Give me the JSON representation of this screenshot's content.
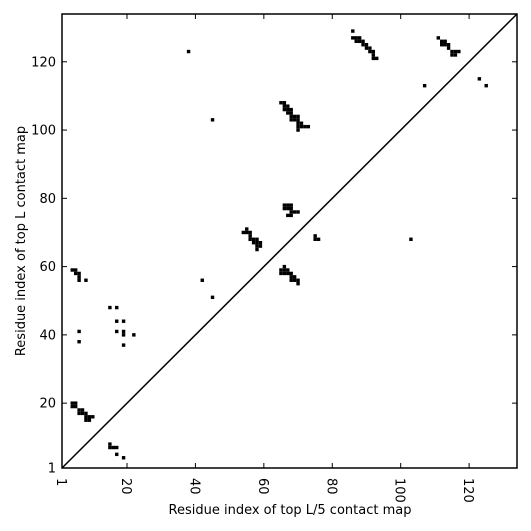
{
  "chart_data": {
    "type": "scatter",
    "title": "",
    "xlabel": "Residue index of top L/5 contact map",
    "ylabel": "Residue index of top L contact map",
    "xlim": [
      1,
      134
    ],
    "ylim": [
      1,
      134
    ],
    "xticks": [
      1,
      20,
      40,
      60,
      80,
      100,
      120
    ],
    "yticks": [
      1,
      20,
      40,
      60,
      80,
      100,
      120
    ],
    "xtick_rotation_deg": -90,
    "marker": "square",
    "marker_color": "#000000",
    "diagonal_line": true,
    "grid": false,
    "series": [
      {
        "name": "",
        "points": [
          [
            86,
            129
          ],
          [
            86,
            127
          ],
          [
            87,
            127
          ],
          [
            87,
            126
          ],
          [
            88,
            127
          ],
          [
            88,
            126
          ],
          [
            89,
            126
          ],
          [
            89,
            125
          ],
          [
            90,
            125
          ],
          [
            90,
            124
          ],
          [
            91,
            124
          ],
          [
            91,
            123
          ],
          [
            92,
            123
          ],
          [
            92,
            122
          ],
          [
            92,
            121
          ],
          [
            93,
            121
          ],
          [
            111,
            127
          ],
          [
            112,
            126
          ],
          [
            112,
            125
          ],
          [
            113,
            126
          ],
          [
            113,
            125
          ],
          [
            114,
            125
          ],
          [
            114,
            124
          ],
          [
            115,
            123
          ],
          [
            115,
            122
          ],
          [
            116,
            123
          ],
          [
            116,
            122
          ],
          [
            117,
            123
          ],
          [
            123,
            115
          ],
          [
            125,
            113
          ],
          [
            107,
            113
          ],
          [
            38,
            123
          ],
          [
            45,
            103
          ],
          [
            65,
            108
          ],
          [
            66,
            108
          ],
          [
            66,
            107
          ],
          [
            66,
            106
          ],
          [
            67,
            107
          ],
          [
            67,
            106
          ],
          [
            67,
            105
          ],
          [
            68,
            106
          ],
          [
            68,
            105
          ],
          [
            68,
            104
          ],
          [
            68,
            103
          ],
          [
            69,
            104
          ],
          [
            69,
            103
          ],
          [
            70,
            104
          ],
          [
            70,
            103
          ],
          [
            70,
            102
          ],
          [
            70,
            101
          ],
          [
            70,
            100
          ],
          [
            71,
            102
          ],
          [
            71,
            101
          ],
          [
            72,
            101
          ],
          [
            73,
            101
          ],
          [
            54,
            70
          ],
          [
            55,
            71
          ],
          [
            55,
            70
          ],
          [
            56,
            70
          ],
          [
            56,
            69
          ],
          [
            56,
            68
          ],
          [
            57,
            68
          ],
          [
            57,
            67
          ],
          [
            58,
            68
          ],
          [
            58,
            67
          ],
          [
            58,
            66
          ],
          [
            58,
            65
          ],
          [
            59,
            66
          ],
          [
            59,
            67
          ],
          [
            66,
            78
          ],
          [
            66,
            77
          ],
          [
            67,
            78
          ],
          [
            67,
            77
          ],
          [
            68,
            78
          ],
          [
            68,
            77
          ],
          [
            67,
            75
          ],
          [
            68,
            76
          ],
          [
            68,
            75
          ],
          [
            69,
            76
          ],
          [
            70,
            76
          ],
          [
            75,
            69
          ],
          [
            75,
            68
          ],
          [
            76,
            68
          ],
          [
            103,
            68
          ],
          [
            65,
            59
          ],
          [
            65,
            58
          ],
          [
            66,
            60
          ],
          [
            66,
            59
          ],
          [
            66,
            58
          ],
          [
            67,
            59
          ],
          [
            67,
            58
          ],
          [
            68,
            58
          ],
          [
            68,
            57
          ],
          [
            68,
            56
          ],
          [
            69,
            57
          ],
          [
            69,
            56
          ],
          [
            70,
            56
          ],
          [
            70,
            55
          ],
          [
            42,
            56
          ],
          [
            45,
            51
          ],
          [
            4,
            59
          ],
          [
            5,
            59
          ],
          [
            5,
            58
          ],
          [
            6,
            58
          ],
          [
            6,
            57
          ],
          [
            6,
            56
          ],
          [
            8,
            56
          ],
          [
            15,
            48
          ],
          [
            17,
            48
          ],
          [
            17,
            44
          ],
          [
            19,
            44
          ],
          [
            17,
            41
          ],
          [
            19,
            41
          ],
          [
            19,
            40
          ],
          [
            22,
            40
          ],
          [
            19,
            37
          ],
          [
            6,
            41
          ],
          [
            6,
            38
          ],
          [
            4,
            20
          ],
          [
            4,
            19
          ],
          [
            5,
            20
          ],
          [
            5,
            19
          ],
          [
            6,
            18
          ],
          [
            6,
            17
          ],
          [
            7,
            18
          ],
          [
            7,
            17
          ],
          [
            8,
            17
          ],
          [
            8,
            16
          ],
          [
            8,
            15
          ],
          [
            9,
            16
          ],
          [
            9,
            15
          ],
          [
            10,
            16
          ],
          [
            15,
            8
          ],
          [
            15,
            7
          ],
          [
            16,
            7
          ],
          [
            17,
            7
          ],
          [
            17,
            5
          ],
          [
            19,
            4
          ]
        ]
      }
    ]
  }
}
